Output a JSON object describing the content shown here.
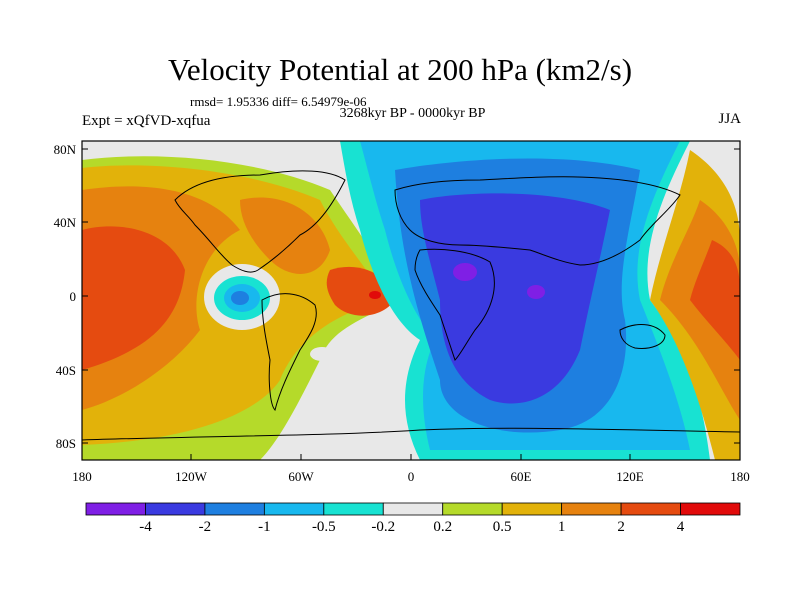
{
  "title": "Velocity Potential at 200 hPa (km2/s)",
  "stats": "rmsd= 1.95336 diff= 6.54979e-06",
  "subtitle": "3268kyr BP - 0000kyr BP",
  "experiment": "Expt = xQfVD-xqfua",
  "season": "JJA",
  "lat_labels": [
    "80N",
    "40N",
    "0",
    "40S",
    "80S"
  ],
  "lon_labels": [
    "180",
    "120W",
    "60W",
    "0",
    "60E",
    "120E",
    "180"
  ],
  "colorbar": {
    "colors": [
      "#7f1fe5",
      "#3a3ae0",
      "#1e7fe0",
      "#18b8ee",
      "#18e2d2",
      "#e8e8e8",
      "#b5da2a",
      "#e2b20a",
      "#e6820f",
      "#e54b10",
      "#e10a0a"
    ],
    "labels": [
      "-4",
      "-2",
      "-1",
      "-0.5",
      "-0.2",
      "0.2",
      "0.5",
      "1",
      "2",
      "4"
    ]
  }
}
